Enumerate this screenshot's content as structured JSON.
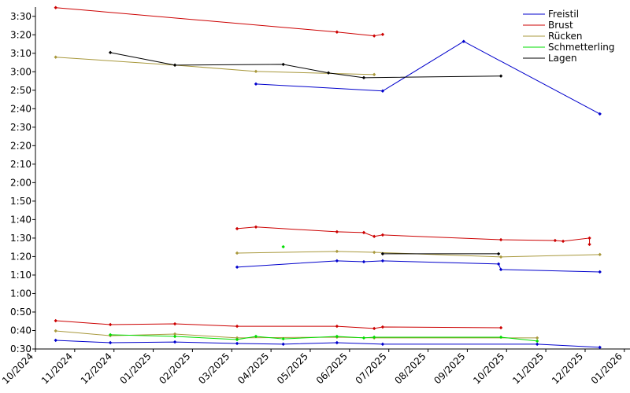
{
  "chart_data": {
    "type": "line",
    "xlim": [
      2024.75,
      2026.012
    ],
    "ylim": [
      30,
      215
    ],
    "xticks": [
      {
        "value": 2024.75,
        "label": "10/2024"
      },
      {
        "value": 2024.8333,
        "label": "11/2024"
      },
      {
        "value": 2024.9167,
        "label": "12/2024"
      },
      {
        "value": 2025.0,
        "label": "01/2025"
      },
      {
        "value": 2025.0833,
        "label": "02/2025"
      },
      {
        "value": 2025.1667,
        "label": "03/2025"
      },
      {
        "value": 2025.25,
        "label": "04/2025"
      },
      {
        "value": 2025.3333,
        "label": "05/2025"
      },
      {
        "value": 2025.4167,
        "label": "06/2025"
      },
      {
        "value": 2025.5,
        "label": "07/2025"
      },
      {
        "value": 2025.5833,
        "label": "08/2025"
      },
      {
        "value": 2025.6667,
        "label": "09/2025"
      },
      {
        "value": 2025.75,
        "label": "10/2025"
      },
      {
        "value": 2025.8333,
        "label": "11/2025"
      },
      {
        "value": 2025.9167,
        "label": "12/2025"
      },
      {
        "value": 2026.0,
        "label": "01/2026"
      }
    ],
    "yticks": [
      {
        "value": 30,
        "label": "0:30"
      },
      {
        "value": 40,
        "label": "0:40"
      },
      {
        "value": 50,
        "label": "0:50"
      },
      {
        "value": 60,
        "label": "1:00"
      },
      {
        "value": 70,
        "label": "1:10"
      },
      {
        "value": 80,
        "label": "1:20"
      },
      {
        "value": 90,
        "label": "1:30"
      },
      {
        "value": 100,
        "label": "1:40"
      },
      {
        "value": 110,
        "label": "1:50"
      },
      {
        "value": 120,
        "label": "2:00"
      },
      {
        "value": 130,
        "label": "2:10"
      },
      {
        "value": 140,
        "label": "2:20"
      },
      {
        "value": 150,
        "label": "2:30"
      },
      {
        "value": 160,
        "label": "2:40"
      },
      {
        "value": 170,
        "label": "2:50"
      },
      {
        "value": 180,
        "label": "3:00"
      },
      {
        "value": 190,
        "label": "3:10"
      },
      {
        "value": 200,
        "label": "3:20"
      },
      {
        "value": 210,
        "label": "3:30"
      }
    ],
    "legend": "upper right",
    "series": [
      {
        "name": "Freistil",
        "color": "#0000cc",
        "x": [
          2025.218,
          2025.487,
          2025.659,
          2025.948,
          null,
          2025.178,
          2025.39,
          2025.447,
          2025.487,
          2025.733,
          2025.738,
          2025.948,
          null,
          2024.793,
          2024.909,
          2025.046,
          2025.178,
          2025.276,
          2025.39,
          2025.487,
          2025.815,
          2025.948
        ],
        "values": [
          173.4,
          169.6,
          196.4,
          157.2,
          null,
          74.3,
          77.7,
          77.2,
          77.7,
          76.0,
          73.0,
          71.7,
          null,
          34.7,
          33.4,
          33.8,
          33.0,
          32.6,
          33.4,
          32.6,
          32.6,
          30.9
        ]
      },
      {
        "name": "Brust",
        "color": "#cc0000",
        "x": [
          2024.793,
          2025.39,
          2025.469,
          2025.487,
          null,
          2025.178,
          2025.218,
          2025.39,
          2025.447,
          2025.469,
          2025.487,
          2025.738,
          2025.853,
          2025.87,
          2025.926,
          2025.926,
          null,
          2024.793,
          2024.909,
          2025.046,
          2025.178,
          2025.39,
          2025.469,
          2025.487,
          2025.738
        ],
        "values": [
          214.7,
          201.5,
          199.4,
          200.2,
          null,
          95.1,
          96.0,
          93.4,
          93.0,
          90.9,
          91.7,
          89.1,
          88.7,
          88.3,
          90.0,
          86.6,
          null,
          45.3,
          43.2,
          43.6,
          42.3,
          42.3,
          41.1,
          41.9,
          41.5
        ]
      },
      {
        "name": "Rücken",
        "color": "#a8983c",
        "x": [
          2024.793,
          2025.046,
          2025.218,
          2025.469,
          null,
          2025.178,
          2025.39,
          2025.469,
          2025.738,
          2025.948,
          null,
          2024.793,
          2024.909,
          2025.046,
          2025.178,
          2025.39,
          2025.469,
          2025.815
        ],
        "values": [
          187.9,
          183.6,
          180.2,
          178.5,
          null,
          81.9,
          82.8,
          82.3,
          79.8,
          81.1,
          null,
          39.8,
          37.2,
          38.1,
          36.0,
          36.4,
          36.0,
          36.0
        ]
      },
      {
        "name": "Schmetterling",
        "color": "#00dd00",
        "x": [
          2025.276,
          null,
          2024.909,
          2025.046,
          2025.178,
          2025.218,
          2025.276,
          2025.39,
          2025.447,
          2025.469,
          2025.738,
          2025.815
        ],
        "values": [
          85.3,
          null,
          37.7,
          36.8,
          35.1,
          36.8,
          35.5,
          36.8,
          36.0,
          36.4,
          36.4,
          34.3
        ]
      },
      {
        "name": "Lagen",
        "color": "#000000",
        "x": [
          2024.909,
          2025.046,
          2025.276,
          2025.372,
          2025.447,
          2025.738,
          null,
          2025.487,
          2025.733
        ],
        "values": [
          190.4,
          183.6,
          184.0,
          179.4,
          176.8,
          177.7,
          null,
          81.5,
          81.5
        ]
      }
    ]
  }
}
